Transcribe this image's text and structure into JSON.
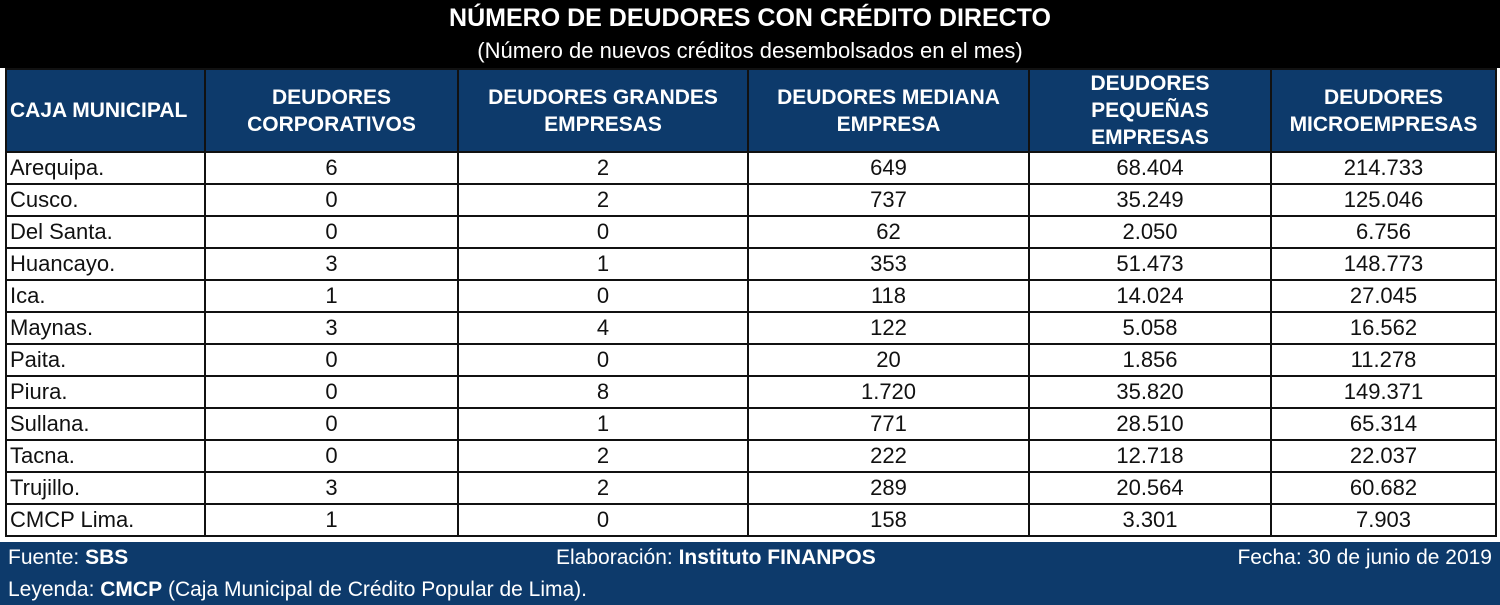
{
  "title": "NÚMERO DE DEUDORES CON CRÉDITO DIRECTO",
  "subtitle": "(Número de nuevos créditos desembolsados en el mes)",
  "headers": [
    "CAJA MUNICIPAL",
    "DEUDORES CORPORATIVOS",
    "DEUDORES GRANDES EMPRESAS",
    "DEUDORES MEDIANA EMPRESA",
    "DEUDORES PEQUEÑAS EMPRESAS",
    "DEUDORES MICROEMPRESAS"
  ],
  "rows": [
    [
      "Arequipa.",
      "6",
      "2",
      "649",
      "68.404",
      "214.733"
    ],
    [
      "Cusco.",
      "0",
      "2",
      "737",
      "35.249",
      "125.046"
    ],
    [
      "Del Santa.",
      "0",
      "0",
      "62",
      "2.050",
      "6.756"
    ],
    [
      "Huancayo.",
      "3",
      "1",
      "353",
      "51.473",
      "148.773"
    ],
    [
      "Ica.",
      "1",
      "0",
      "118",
      "14.024",
      "27.045"
    ],
    [
      "Maynas.",
      "3",
      "4",
      "122",
      "5.058",
      "16.562"
    ],
    [
      "Paita.",
      "0",
      "0",
      "20",
      "1.856",
      "11.278"
    ],
    [
      "Piura.",
      "0",
      "8",
      "1.720",
      "35.820",
      "149.371"
    ],
    [
      "Sullana.",
      "0",
      "1",
      "771",
      "28.510",
      "65.314"
    ],
    [
      "Tacna.",
      "0",
      "2",
      "222",
      "12.718",
      "22.037"
    ],
    [
      "Trujillo.",
      "3",
      "2",
      "289",
      "20.564",
      "60.682"
    ],
    [
      "CMCP Lima.",
      "1",
      "0",
      "158",
      "3.301",
      "7.903"
    ]
  ],
  "footer": {
    "source_label": "Fuente:",
    "source_value": "SBS",
    "elaboration_label": "Elaboración:",
    "elaboration_value": "Instituto FINANPOS",
    "date_text": "Fecha: 30 de junio de 2019",
    "legend_label": "Leyenda:",
    "legend_abbr": "CMCP",
    "legend_text": "(Caja Municipal de Crédito Popular de Lima)."
  },
  "colors": {
    "header_bg": "#0d3a6b",
    "title_bg": "#000000",
    "text_on_dark": "#ffffff"
  }
}
